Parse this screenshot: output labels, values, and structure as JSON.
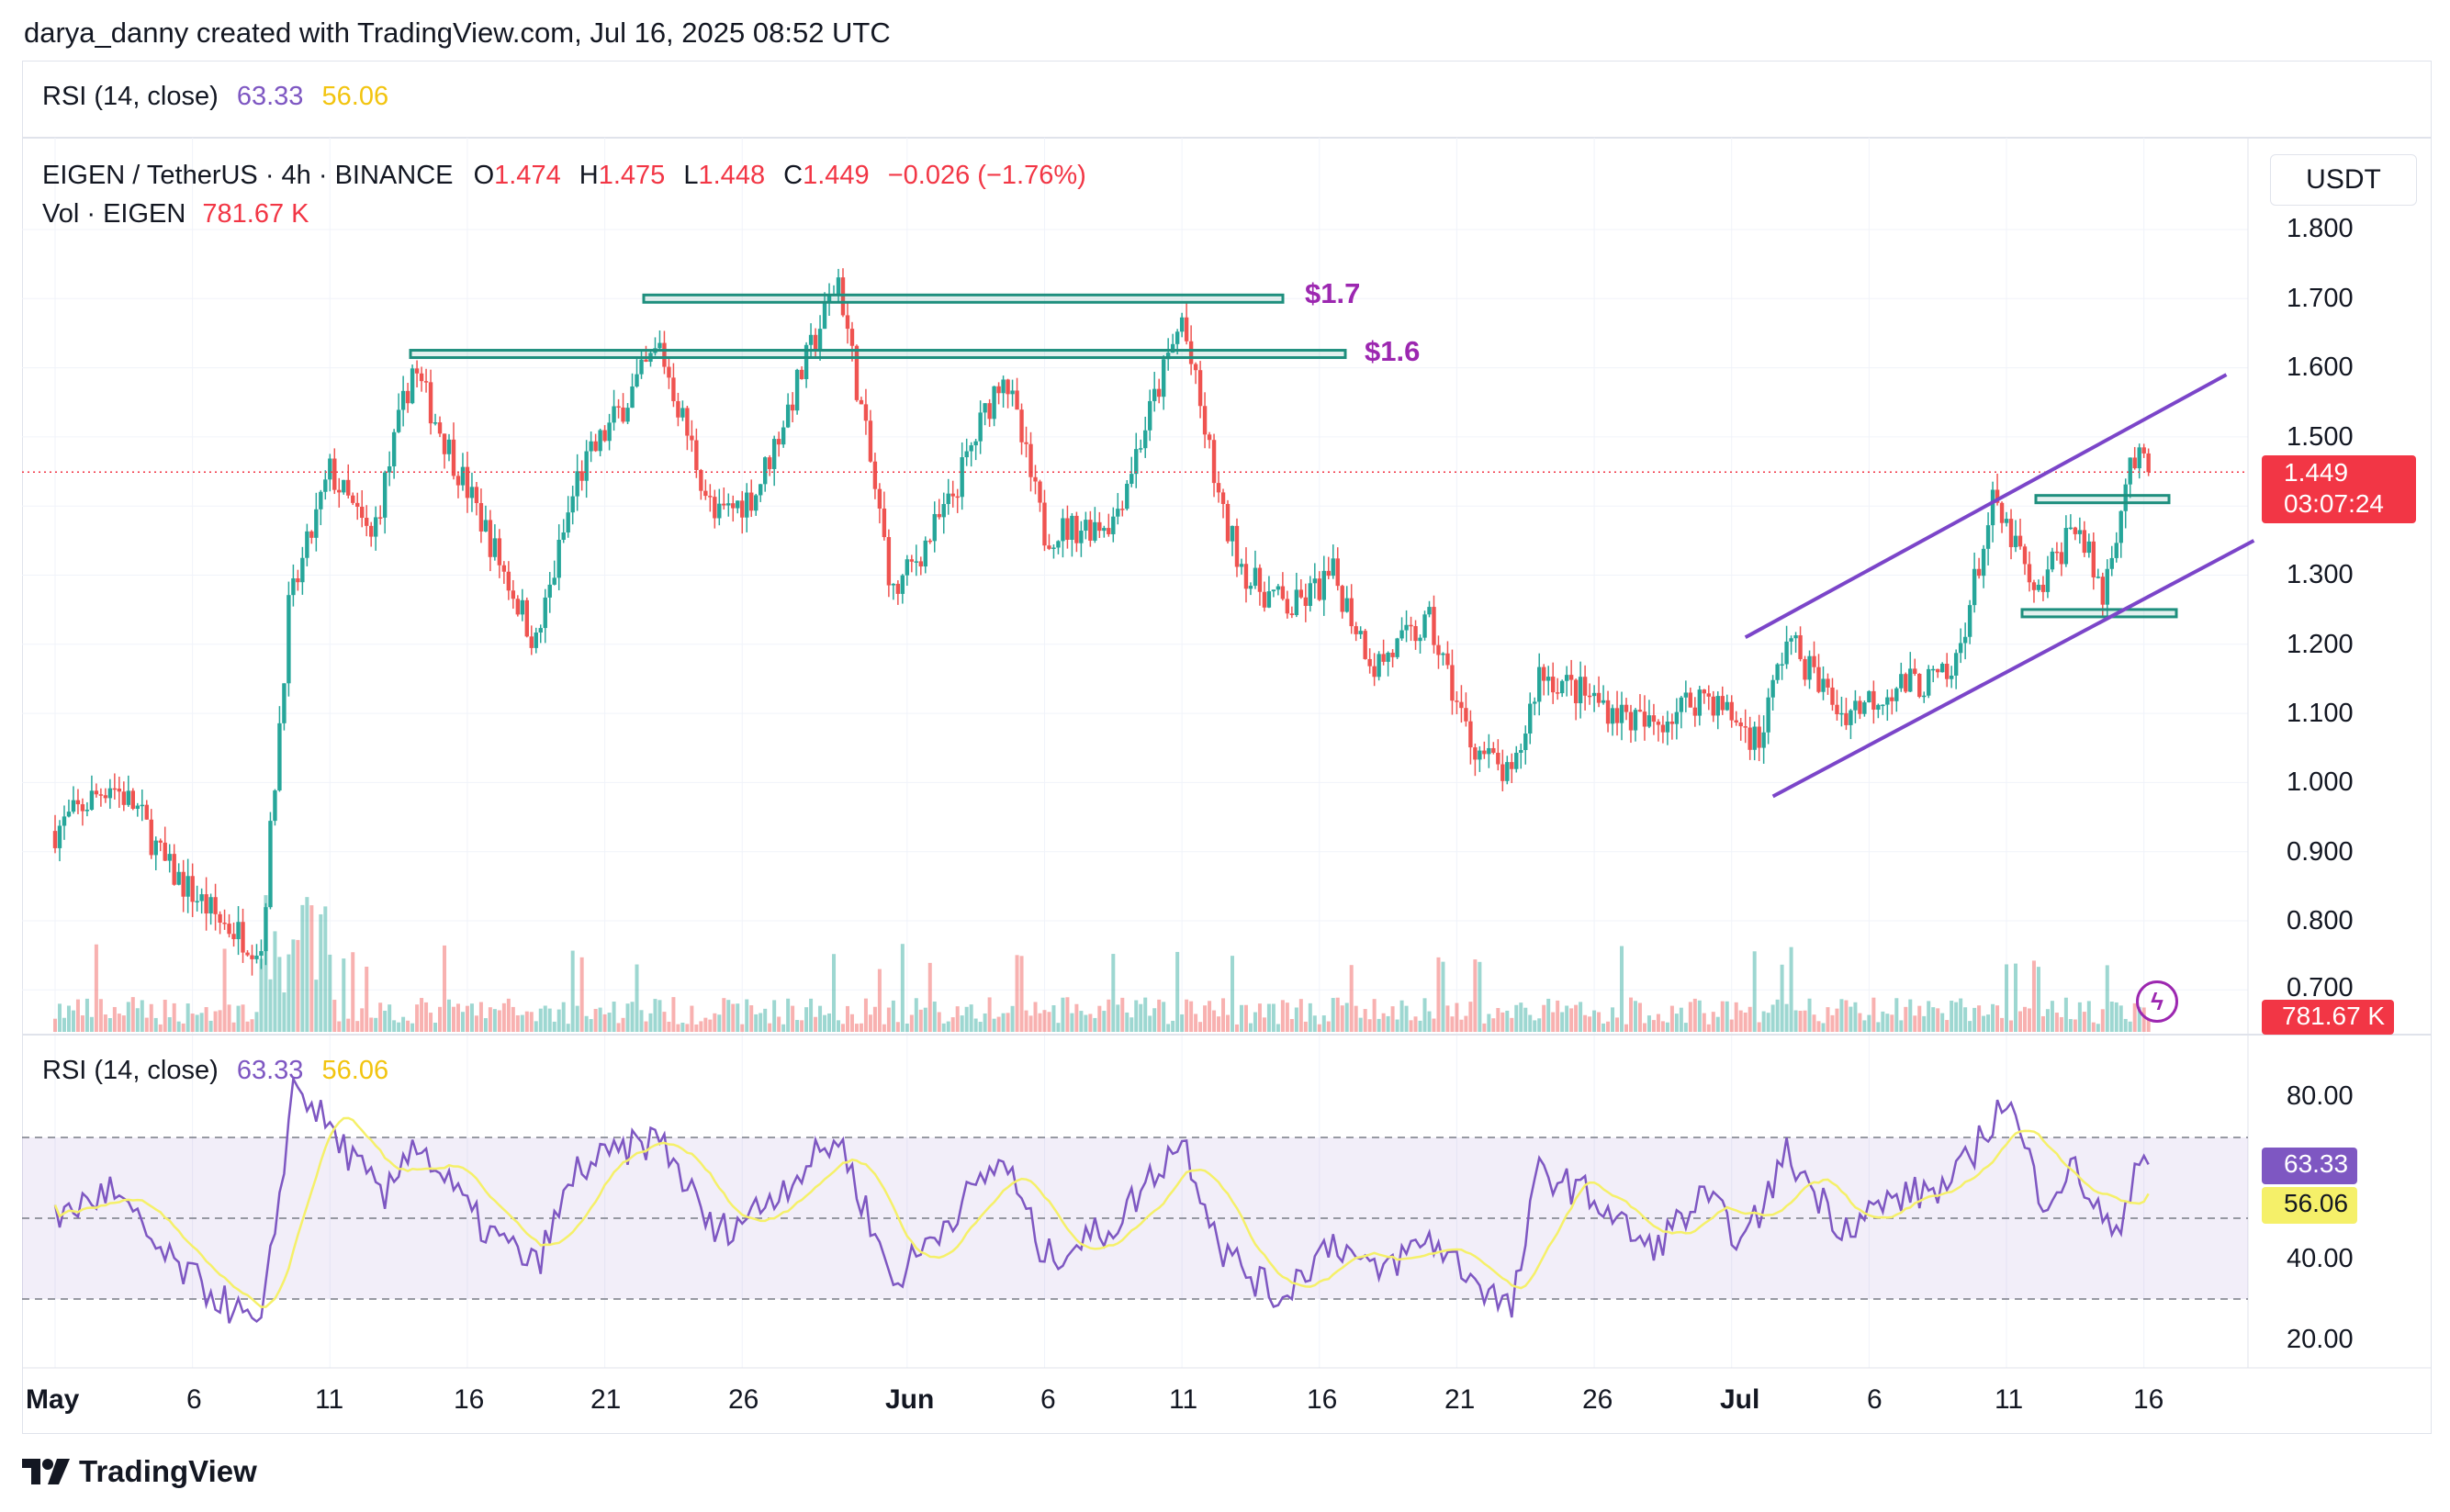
{
  "header": {
    "attribution": "darya_danny created with TradingView.com, Jul 16, 2025 08:52 UTC"
  },
  "rsi_top_legend": {
    "label": "RSI (14, close)",
    "rsi": "63.33",
    "ma": "56.06"
  },
  "price_legend": {
    "symbol": "EIGEN / TetherUS · 4h · BINANCE",
    "o_key": "O",
    "o_val": "1.474",
    "h_key": "H",
    "h_val": "1.475",
    "l_key": "L",
    "l_val": "1.448",
    "c_key": "C",
    "c_val": "1.449",
    "change": "−0.026 (−1.76%)",
    "vol_label": "Vol · EIGEN",
    "vol_val": "781.67 K"
  },
  "price_axis": {
    "currency": "USDT",
    "ticks": [
      "1.800",
      "1.700",
      "1.600",
      "1.500",
      "1.300",
      "1.200",
      "1.100",
      "1.000",
      "0.900",
      "0.800",
      "0.700"
    ],
    "last_price": "1.449",
    "countdown": "03:07:24",
    "volume_tag": "781.67 K"
  },
  "rsi_pane": {
    "label": "RSI (14, close)",
    "rsi": "63.33",
    "ma": "56.06",
    "ticks": [
      "80.00",
      "40.00",
      "20.00"
    ],
    "rsi_tag": "63.33",
    "ma_tag": "56.06"
  },
  "x_axis": {
    "labels": [
      "May",
      "6",
      "11",
      "16",
      "21",
      "26",
      "Jun",
      "6",
      "11",
      "16",
      "21",
      "26",
      "Jul",
      "6",
      "11",
      "16"
    ]
  },
  "annotations": {
    "level_high": "$1.7",
    "level_low": "$1.6"
  },
  "footer": {
    "brand": "TradingView"
  },
  "colors": {
    "up": "#26a69a",
    "down": "#ef5350",
    "rsi": "#7e57c2",
    "rsi_ma": "#f5f069",
    "level": "#1e8f7e",
    "channel": "#7b45c9",
    "last_price": "#f23645"
  },
  "chart_data": [
    {
      "type": "candlestick",
      "title": "EIGEN / TetherUS · 4h · BINANCE",
      "ylabel": "USDT",
      "ylim": [
        0.7,
        1.85
      ],
      "x": [
        "May 1",
        "May 6",
        "May 11",
        "May 16",
        "May 21",
        "May 26",
        "Jun 1",
        "Jun 6",
        "Jun 11",
        "Jun 16",
        "Jun 21",
        "Jun 26",
        "Jul 1",
        "Jul 6",
        "Jul 11",
        "Jul 16"
      ],
      "close_path": [
        {
          "day": 0,
          "close": 0.93
        },
        {
          "day": 2,
          "close": 1.0
        },
        {
          "day": 3,
          "close": 0.96
        },
        {
          "day": 4,
          "close": 0.88
        },
        {
          "day": 6,
          "close": 0.8
        },
        {
          "day": 7.5,
          "close": 0.76
        },
        {
          "day": 8.5,
          "close": 1.25
        },
        {
          "day": 10,
          "close": 1.45
        },
        {
          "day": 11.5,
          "close": 1.35
        },
        {
          "day": 13,
          "close": 1.6
        },
        {
          "day": 15.5,
          "close": 1.38
        },
        {
          "day": 17.5,
          "close": 1.2
        },
        {
          "day": 19,
          "close": 1.44
        },
        {
          "day": 22,
          "close": 1.63
        },
        {
          "day": 24,
          "close": 1.38
        },
        {
          "day": 25.5,
          "close": 1.42
        },
        {
          "day": 28.5,
          "close": 1.73
        },
        {
          "day": 30.5,
          "close": 1.27
        },
        {
          "day": 32.5,
          "close": 1.4
        },
        {
          "day": 34.5,
          "close": 1.6
        },
        {
          "day": 36,
          "close": 1.36
        },
        {
          "day": 38.5,
          "close": 1.38
        },
        {
          "day": 41,
          "close": 1.67
        },
        {
          "day": 42.5,
          "close": 1.38
        },
        {
          "day": 43.5,
          "close": 1.29
        },
        {
          "day": 45,
          "close": 1.25
        },
        {
          "day": 46.5,
          "close": 1.3
        },
        {
          "day": 48,
          "close": 1.17
        },
        {
          "day": 50,
          "close": 1.23
        },
        {
          "day": 51.5,
          "close": 1.06
        },
        {
          "day": 53,
          "close": 1.0
        },
        {
          "day": 54,
          "close": 1.16
        },
        {
          "day": 56,
          "close": 1.12
        },
        {
          "day": 58,
          "close": 1.08
        },
        {
          "day": 60,
          "close": 1.13
        },
        {
          "day": 62,
          "close": 1.06
        },
        {
          "day": 63,
          "close": 1.21
        },
        {
          "day": 65,
          "close": 1.1
        },
        {
          "day": 67,
          "close": 1.14
        },
        {
          "day": 69,
          "close": 1.15
        },
        {
          "day": 70.5,
          "close": 1.4
        },
        {
          "day": 71.5,
          "close": 1.33
        },
        {
          "day": 72,
          "close": 1.26
        },
        {
          "day": 73.5,
          "close": 1.38
        },
        {
          "day": 74.5,
          "close": 1.27
        },
        {
          "day": 75.5,
          "close": 1.47
        },
        {
          "day": 76.2,
          "close": 1.449
        }
      ],
      "horizontal_levels": [
        {
          "label": "$1.7",
          "price": 1.7
        },
        {
          "label": "$1.6",
          "price": 1.62
        },
        {
          "label": "",
          "price": 1.41
        },
        {
          "label": "",
          "price": 1.245
        }
      ],
      "ascending_channel": {
        "upper": [
          {
            "day": 61.5,
            "price": 1.21
          },
          {
            "day": 79,
            "price": 1.59
          }
        ],
        "lower": [
          {
            "day": 62.5,
            "price": 0.98
          },
          {
            "day": 80,
            "price": 1.35
          }
        ]
      },
      "last_price": 1.449
    },
    {
      "type": "line",
      "title": "RSI (14, close)",
      "ylim": [
        15,
        88
      ],
      "bands": [
        30,
        50,
        70
      ],
      "series": [
        {
          "name": "RSI",
          "values_path": [
            {
              "day": 0,
              "rsi": 50
            },
            {
              "day": 2,
              "rsi": 57
            },
            {
              "day": 4,
              "rsi": 40
            },
            {
              "day": 6,
              "rsi": 30
            },
            {
              "day": 7.5,
              "rsi": 22
            },
            {
              "day": 8.7,
              "rsi": 84
            },
            {
              "day": 10,
              "rsi": 72
            },
            {
              "day": 12,
              "rsi": 54
            },
            {
              "day": 13,
              "rsi": 70
            },
            {
              "day": 15.5,
              "rsi": 48
            },
            {
              "day": 17.5,
              "rsi": 38
            },
            {
              "day": 19,
              "rsi": 62
            },
            {
              "day": 22,
              "rsi": 70
            },
            {
              "day": 24,
              "rsi": 46
            },
            {
              "day": 25.5,
              "rsi": 52
            },
            {
              "day": 28.5,
              "rsi": 70
            },
            {
              "day": 30.5,
              "rsi": 34
            },
            {
              "day": 32.5,
              "rsi": 50
            },
            {
              "day": 34.5,
              "rsi": 65
            },
            {
              "day": 36,
              "rsi": 40
            },
            {
              "day": 38.5,
              "rsi": 48
            },
            {
              "day": 41,
              "rsi": 70
            },
            {
              "day": 42.5,
              "rsi": 42
            },
            {
              "day": 44.5,
              "rsi": 30
            },
            {
              "day": 46.5,
              "rsi": 45
            },
            {
              "day": 48,
              "rsi": 36
            },
            {
              "day": 50,
              "rsi": 45
            },
            {
              "day": 53,
              "rsi": 27
            },
            {
              "day": 54,
              "rsi": 62
            },
            {
              "day": 56,
              "rsi": 55
            },
            {
              "day": 58,
              "rsi": 42
            },
            {
              "day": 60,
              "rsi": 55
            },
            {
              "day": 61.5,
              "rsi": 44
            },
            {
              "day": 63,
              "rsi": 66
            },
            {
              "day": 65,
              "rsi": 48
            },
            {
              "day": 67,
              "rsi": 55
            },
            {
              "day": 69,
              "rsi": 58
            },
            {
              "day": 71,
              "rsi": 80
            },
            {
              "day": 72.3,
              "rsi": 55
            },
            {
              "day": 73.5,
              "rsi": 62
            },
            {
              "day": 75,
              "rsi": 44
            },
            {
              "day": 75.8,
              "rsi": 67
            },
            {
              "day": 76.2,
              "rsi": 63.33
            }
          ]
        },
        {
          "name": "RSI-based MA",
          "last": 56.06
        }
      ]
    }
  ]
}
